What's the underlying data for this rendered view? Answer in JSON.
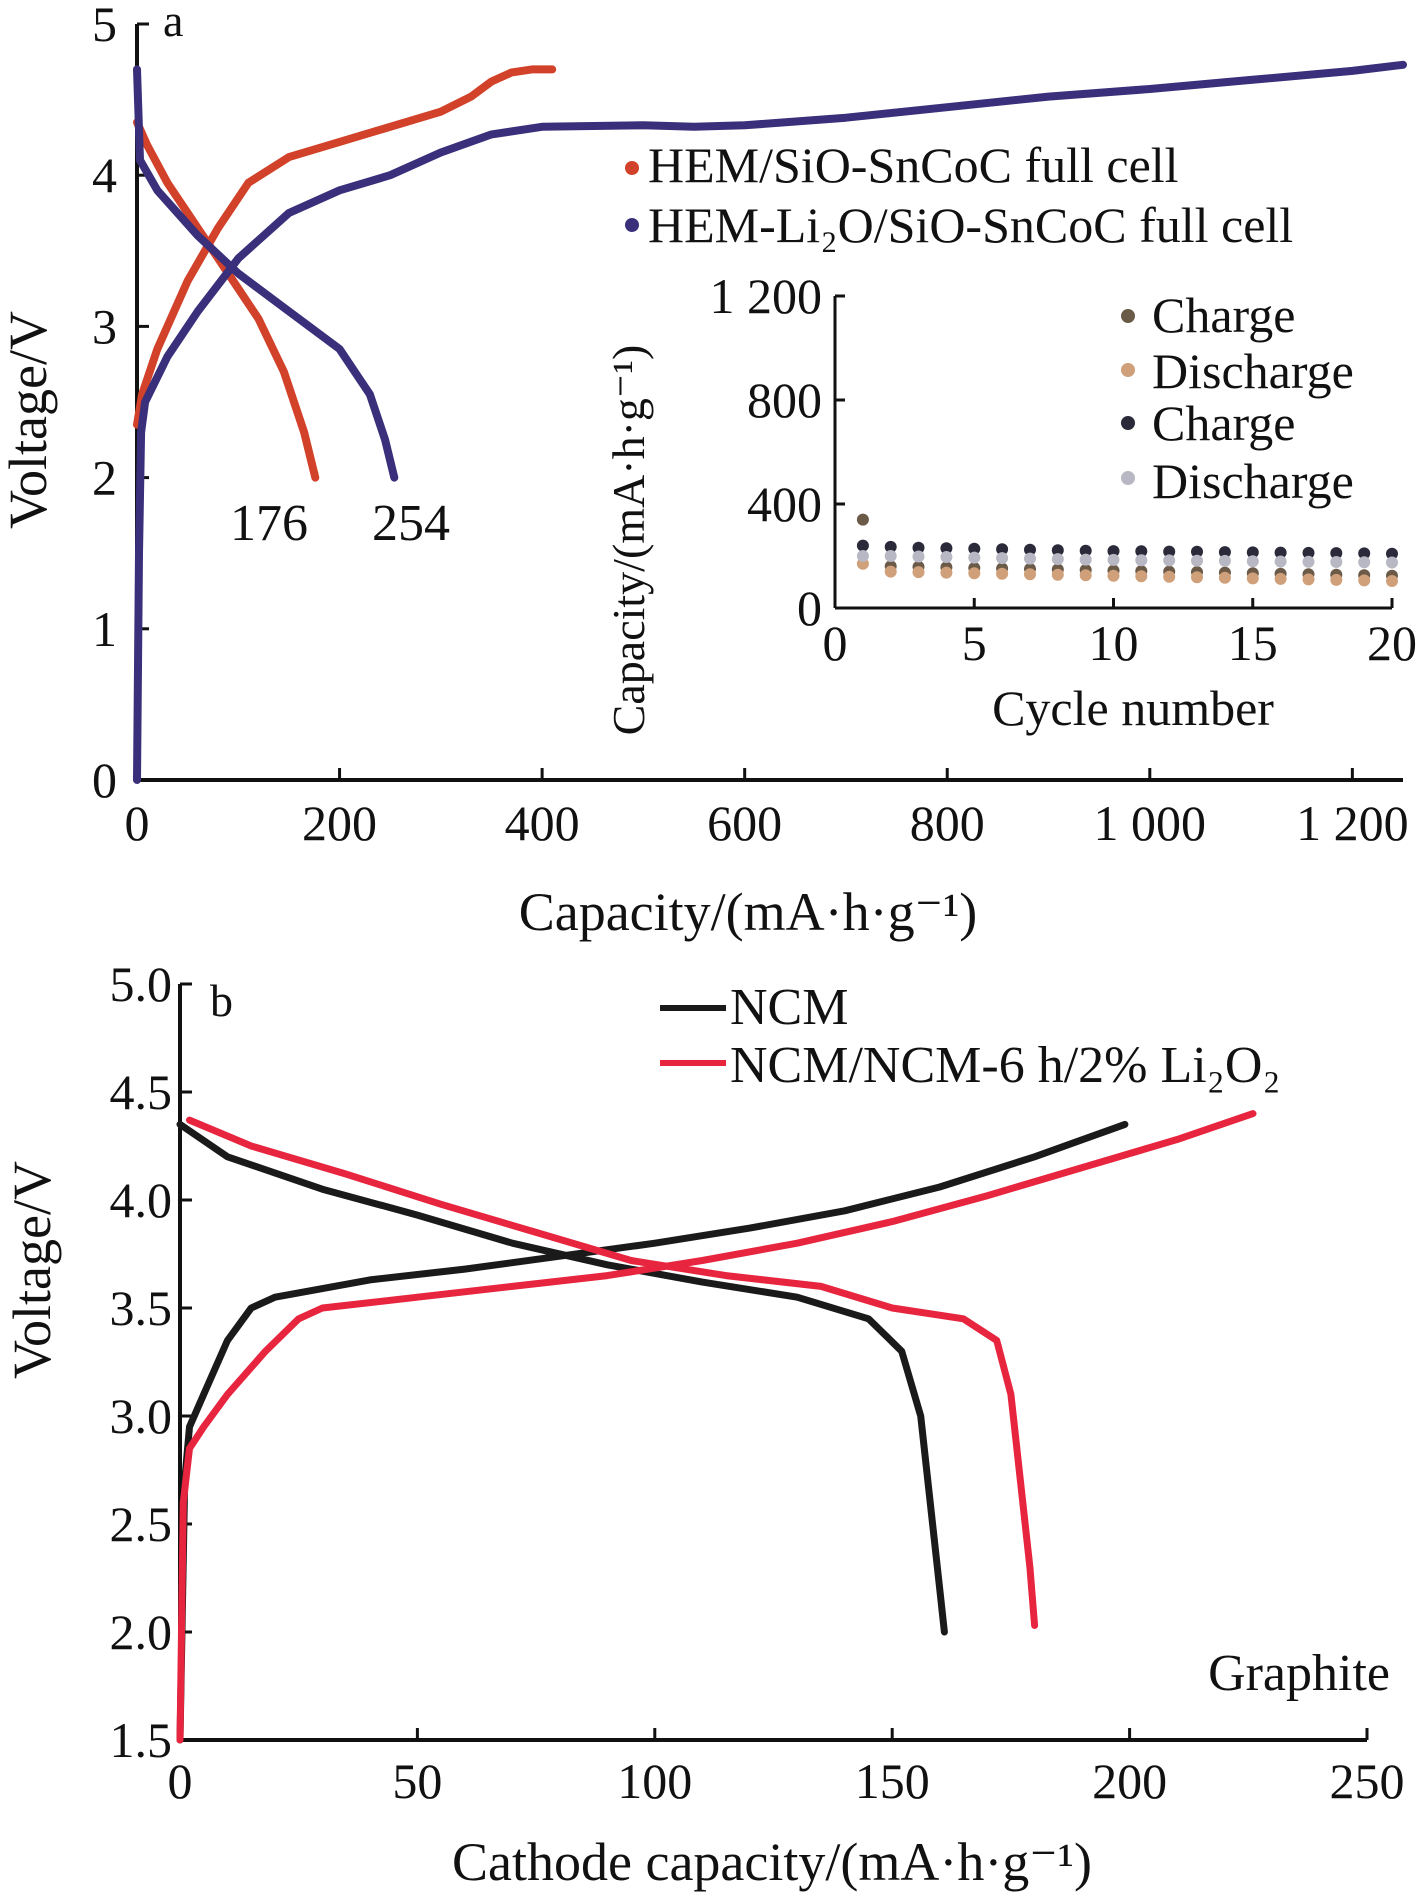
{
  "colors": {
    "axis": "#111111",
    "red_series": "#d2412a",
    "blue_series": "#3a2f7a",
    "black_series": "#1a1a1a",
    "pink_series": "#e8253f",
    "charge_dot_1": "#6b5a48",
    "discharge_dot_1": "#cfa07a",
    "charge_dot_2": "#2a2a3a",
    "discharge_dot_2": "#b8b8c4"
  },
  "chart_data": [
    {
      "panel_label": "a",
      "type": "line",
      "xlabel": "Capacity/(mA·h·g⁻¹)",
      "ylabel": "Voltage/V",
      "xlim": [
        0,
        1250
      ],
      "ylim": [
        0,
        5
      ],
      "xticks": [
        0,
        200,
        400,
        600,
        800,
        1000,
        1200
      ],
      "xtick_labels": [
        "0",
        "200",
        "400",
        "600",
        "800",
        "1 000",
        "1 200"
      ],
      "yticks": [
        0,
        1,
        2,
        3,
        4,
        5
      ],
      "ytick_labels": [
        "0",
        "1",
        "2",
        "3",
        "4",
        "5"
      ],
      "legend": [
        "HEM/SiO-SnCoC full cell",
        "HEM-Li₂O/SiO-SnCoC full cell"
      ],
      "annotations": [
        "176",
        "254"
      ],
      "series": [
        {
          "name": "HEM/SiO-SnCoC full cell",
          "color_key": "red_series",
          "charge": [
            [
              0,
              2.35
            ],
            [
              5,
              2.55
            ],
            [
              20,
              2.85
            ],
            [
              50,
              3.3
            ],
            [
              80,
              3.65
            ],
            [
              110,
              3.95
            ],
            [
              150,
              4.12
            ],
            [
              200,
              4.22
            ],
            [
              250,
              4.32
            ],
            [
              300,
              4.42
            ],
            [
              330,
              4.52
            ],
            [
              350,
              4.62
            ],
            [
              370,
              4.68
            ],
            [
              390,
              4.7
            ],
            [
              410,
              4.7
            ]
          ],
          "discharge": [
            [
              0,
              4.35
            ],
            [
              10,
              4.2
            ],
            [
              30,
              3.95
            ],
            [
              60,
              3.65
            ],
            [
              90,
              3.35
            ],
            [
              120,
              3.05
            ],
            [
              145,
              2.7
            ],
            [
              165,
              2.3
            ],
            [
              176,
              2.0
            ]
          ]
        },
        {
          "name": "HEM-Li₂O/SiO-SnCoC full cell",
          "color_key": "blue_series",
          "charge": [
            [
              0,
              0
            ],
            [
              2,
              1.5
            ],
            [
              4,
              2.3
            ],
            [
              8,
              2.5
            ],
            [
              30,
              2.8
            ],
            [
              60,
              3.1
            ],
            [
              100,
              3.45
            ],
            [
              150,
              3.75
            ],
            [
              200,
              3.9
            ],
            [
              250,
              4.0
            ],
            [
              300,
              4.15
            ],
            [
              350,
              4.27
            ],
            [
              400,
              4.32
            ],
            [
              500,
              4.33
            ],
            [
              550,
              4.32
            ],
            [
              600,
              4.33
            ],
            [
              700,
              4.38
            ],
            [
              800,
              4.45
            ],
            [
              900,
              4.52
            ],
            [
              1000,
              4.57
            ],
            [
              1100,
              4.63
            ],
            [
              1200,
              4.69
            ],
            [
              1250,
              4.73
            ]
          ],
          "discharge": [
            [
              0,
              4.7
            ],
            [
              3,
              4.1
            ],
            [
              20,
              3.9
            ],
            [
              60,
              3.6
            ],
            [
              100,
              3.35
            ],
            [
              150,
              3.1
            ],
            [
              200,
              2.85
            ],
            [
              230,
              2.55
            ],
            [
              245,
              2.25
            ],
            [
              254,
              2.0
            ]
          ]
        }
      ],
      "inset": {
        "type": "scatter",
        "xlabel": "Cycle number",
        "ylabel": "Capacity/(mA·h·g⁻¹)",
        "xlim": [
          0,
          20
        ],
        "ylim": [
          0,
          1200
        ],
        "xticks": [
          0,
          5,
          10,
          15,
          20
        ],
        "xtick_labels": [
          "0",
          "5",
          "10",
          "15",
          "20"
        ],
        "yticks": [
          0,
          400,
          800,
          1200
        ],
        "ytick_labels": [
          "0",
          "400",
          "800",
          "1 200"
        ],
        "legend": [
          "Charge",
          "Discharge",
          "Charge",
          "Discharge"
        ],
        "series": [
          {
            "name": "Charge",
            "color_key": "charge_dot_1",
            "x": [
              1,
              2,
              3,
              4,
              5,
              6,
              7,
              8,
              9,
              10,
              11,
              12,
              13,
              14,
              15,
              16,
              17,
              18,
              19,
              20
            ],
            "y": [
              340,
              160,
              158,
              156,
              154,
              152,
              150,
              148,
              146,
              144,
              142,
              140,
              138,
              136,
              134,
              132,
              130,
              128,
              126,
              124
            ]
          },
          {
            "name": "Discharge",
            "color_key": "discharge_dot_1",
            "x": [
              1,
              2,
              3,
              4,
              5,
              6,
              7,
              8,
              9,
              10,
              11,
              12,
              13,
              14,
              15,
              16,
              17,
              18,
              19,
              20
            ],
            "y": [
              170,
              140,
              138,
              136,
              134,
              132,
              130,
              128,
              126,
              124,
              122,
              120,
              118,
              116,
              114,
              112,
              110,
              108,
              106,
              104
            ]
          },
          {
            "name": "Charge",
            "color_key": "charge_dot_2",
            "x": [
              1,
              2,
              3,
              4,
              5,
              6,
              7,
              8,
              9,
              10,
              11,
              12,
              13,
              14,
              15,
              16,
              17,
              18,
              19,
              20
            ],
            "y": [
              240,
              235,
              232,
              230,
              228,
              226,
              224,
              222,
              220,
              219,
              218,
              217,
              216,
              215,
              214,
              213,
              212,
              211,
              210,
              209
            ]
          },
          {
            "name": "Discharge",
            "color_key": "discharge_dot_2",
            "x": [
              1,
              2,
              3,
              4,
              5,
              6,
              7,
              8,
              9,
              10,
              11,
              12,
              13,
              14,
              15,
              16,
              17,
              18,
              19,
              20
            ],
            "y": [
              200,
              200,
              198,
              196,
              194,
              192,
              190,
              188,
              186,
              185,
              184,
              183,
              182,
              181,
              180,
              179,
              178,
              177,
              176,
              175
            ]
          }
        ]
      }
    },
    {
      "panel_label": "b",
      "type": "line",
      "xlabel": "Cathode capacity/(mA·h·g⁻¹)",
      "ylabel": "Voltage/V",
      "xlim": [
        0,
        250
      ],
      "ylim": [
        1.5,
        5.0
      ],
      "xticks": [
        0,
        50,
        100,
        150,
        200,
        250
      ],
      "xtick_labels": [
        "0",
        "50",
        "100",
        "150",
        "200",
        "250"
      ],
      "yticks": [
        1.5,
        2.0,
        2.5,
        3.0,
        3.5,
        4.0,
        4.5,
        5.0
      ],
      "ytick_labels": [
        "1.5",
        "2.0",
        "2.5",
        "3.0",
        "3.5",
        "4.0",
        "4.5",
        "5.0"
      ],
      "legend": [
        "NCM",
        "NCM/NCM-6 h/2% Li₂O₂"
      ],
      "annotations": [
        "Graphite"
      ],
      "series": [
        {
          "name": "NCM",
          "color_key": "black_series",
          "charge": [
            [
              0,
              1.5
            ],
            [
              1,
              2.7
            ],
            [
              2,
              2.95
            ],
            [
              5,
              3.1
            ],
            [
              10,
              3.35
            ],
            [
              15,
              3.5
            ],
            [
              20,
              3.55
            ],
            [
              40,
              3.63
            ],
            [
              60,
              3.68
            ],
            [
              80,
              3.74
            ],
            [
              100,
              3.8
            ],
            [
              120,
              3.87
            ],
            [
              140,
              3.95
            ],
            [
              160,
              4.06
            ],
            [
              180,
              4.2
            ],
            [
              199,
              4.35
            ]
          ],
          "discharge": [
            [
              0,
              4.35
            ],
            [
              10,
              4.2
            ],
            [
              30,
              4.05
            ],
            [
              50,
              3.93
            ],
            [
              70,
              3.8
            ],
            [
              90,
              3.7
            ],
            [
              110,
              3.62
            ],
            [
              130,
              3.55
            ],
            [
              145,
              3.45
            ],
            [
              152,
              3.3
            ],
            [
              156,
              3.0
            ],
            [
              158,
              2.6
            ],
            [
              160,
              2.2
            ],
            [
              161,
              2.0
            ]
          ]
        },
        {
          "name": "NCM/NCM-6 h/2% Li₂O₂",
          "color_key": "pink_series",
          "charge": [
            [
              0,
              1.5
            ],
            [
              0.7,
              2.6
            ],
            [
              2,
              2.85
            ],
            [
              5,
              2.95
            ],
            [
              10,
              3.1
            ],
            [
              18,
              3.3
            ],
            [
              25,
              3.45
            ],
            [
              30,
              3.5
            ],
            [
              50,
              3.55
            ],
            [
              70,
              3.6
            ],
            [
              90,
              3.65
            ],
            [
              110,
              3.72
            ],
            [
              130,
              3.8
            ],
            [
              150,
              3.9
            ],
            [
              170,
              4.02
            ],
            [
              190,
              4.15
            ],
            [
              210,
              4.28
            ],
            [
              226,
              4.4
            ]
          ],
          "discharge": [
            [
              2,
              4.37
            ],
            [
              15,
              4.25
            ],
            [
              35,
              4.12
            ],
            [
              55,
              3.98
            ],
            [
              75,
              3.85
            ],
            [
              95,
              3.72
            ],
            [
              115,
              3.65
            ],
            [
              135,
              3.6
            ],
            [
              150,
              3.5
            ],
            [
              165,
              3.45
            ],
            [
              172,
              3.35
            ],
            [
              175,
              3.1
            ],
            [
              177,
              2.7
            ],
            [
              179,
              2.3
            ],
            [
              180,
              2.03
            ]
          ]
        }
      ]
    }
  ]
}
